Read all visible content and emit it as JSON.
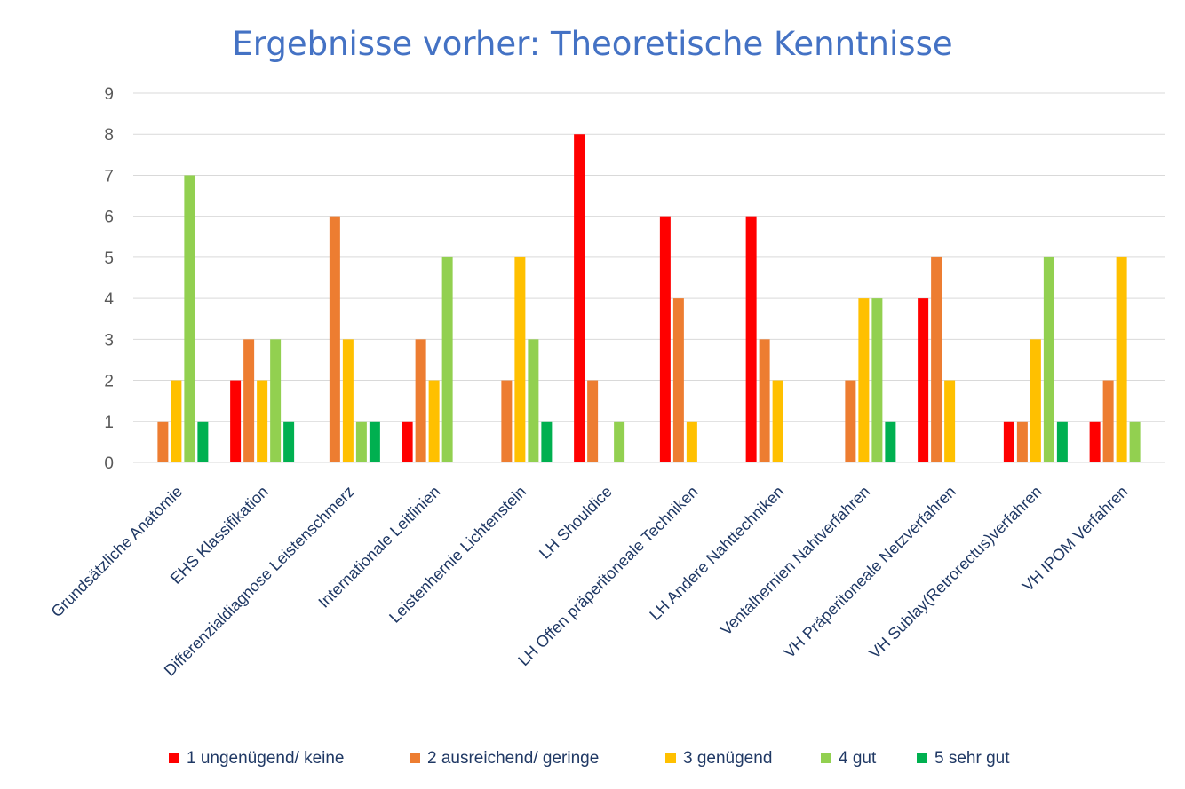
{
  "chart_data": {
    "type": "bar",
    "title": "Ergebnisse vorher: Theoretische Kenntnisse",
    "xlabel": "",
    "ylabel": "",
    "ylim": [
      0,
      9
    ],
    "yticks": [
      "0",
      "1",
      "2",
      "3",
      "4",
      "5",
      "6",
      "7",
      "8",
      "9"
    ],
    "grid": true,
    "legend_position": "bottom",
    "categories": [
      "Grundsätzliche Anatomie",
      "EHS Klassifikation",
      "Differenzialdiagnose Leistenschmerz",
      "Internationale Leitlinien",
      "Leistenhernie Lichtenstein",
      "LH Shouldice",
      "LH Offen präperitoneale Techniken",
      "LH Andere Nahttechniken",
      "Ventalhernien Nahtverfahren",
      "VH Präperitoneale Netzverfahren",
      "VH Sublay(Retrorectus)verfahren",
      "VH IPOM Verfahren"
    ],
    "series": [
      {
        "name": "1 ungenügend/ keine",
        "color": "#ff0000",
        "values": [
          0,
          2,
          0,
          1,
          0,
          8,
          6,
          6,
          0,
          4,
          1,
          1
        ]
      },
      {
        "name": "2 ausreichend/ geringe",
        "color": "#ed7d31",
        "values": [
          1,
          3,
          6,
          3,
          2,
          2,
          4,
          3,
          2,
          5,
          1,
          2
        ]
      },
      {
        "name": "3 genügend",
        "color": "#ffc000",
        "values": [
          2,
          2,
          3,
          2,
          5,
          0,
          1,
          2,
          4,
          2,
          3,
          5
        ]
      },
      {
        "name": "4 gut",
        "color": "#92d050",
        "values": [
          7,
          3,
          1,
          5,
          3,
          1,
          0,
          0,
          4,
          0,
          5,
          1
        ]
      },
      {
        "name": "5 sehr gut",
        "color": "#00b050",
        "values": [
          1,
          1,
          1,
          0,
          1,
          0,
          0,
          0,
          1,
          0,
          1,
          0
        ]
      }
    ]
  }
}
